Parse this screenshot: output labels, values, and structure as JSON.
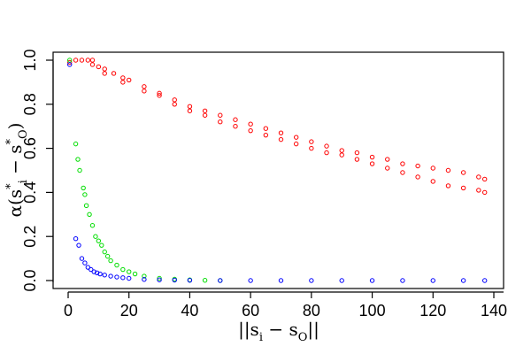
{
  "chart_data": {
    "type": "scatter",
    "xlabel": "||s_i - s_O||",
    "ylabel": "α(s*_i - s*_O)",
    "xlim": [
      0,
      138
    ],
    "ylim": [
      0,
      1.0
    ],
    "x_ticks": [
      "0",
      "20",
      "40",
      "60",
      "80",
      "100",
      "120",
      "140"
    ],
    "y_ticks": [
      "0.0",
      "0.2",
      "0.4",
      "0.6",
      "0.8",
      "1.0"
    ],
    "grid": false,
    "legend": "none",
    "series": [
      {
        "color": "#ff0000",
        "points": [
          [
            0.5,
            0.99
          ],
          [
            2.5,
            1.0
          ],
          [
            4.5,
            1.0
          ],
          [
            6.5,
            1.0
          ],
          [
            8.0,
            1.0
          ],
          [
            10,
            0.97
          ],
          [
            12,
            0.96
          ],
          [
            15,
            0.94
          ],
          [
            18,
            0.92
          ],
          [
            20,
            0.91
          ],
          [
            25,
            0.88
          ],
          [
            30,
            0.85
          ],
          [
            35,
            0.82
          ],
          [
            40,
            0.79
          ],
          [
            45,
            0.77
          ],
          [
            50,
            0.75
          ],
          [
            55,
            0.73
          ],
          [
            60,
            0.71
          ],
          [
            65,
            0.69
          ],
          [
            70,
            0.67
          ],
          [
            75,
            0.65
          ],
          [
            80,
            0.63
          ],
          [
            85,
            0.61
          ],
          [
            90,
            0.59
          ],
          [
            95,
            0.58
          ],
          [
            100,
            0.56
          ],
          [
            105,
            0.55
          ],
          [
            110,
            0.53
          ],
          [
            115,
            0.52
          ],
          [
            120,
            0.51
          ],
          [
            125,
            0.5
          ],
          [
            130,
            0.49
          ],
          [
            135,
            0.47
          ],
          [
            137,
            0.46
          ],
          [
            8,
            0.98
          ],
          [
            12,
            0.94
          ],
          [
            18,
            0.9
          ],
          [
            25,
            0.86
          ],
          [
            30,
            0.84
          ],
          [
            35,
            0.8
          ],
          [
            40,
            0.77
          ],
          [
            45,
            0.75
          ],
          [
            50,
            0.72
          ],
          [
            55,
            0.7
          ],
          [
            60,
            0.68
          ],
          [
            65,
            0.66
          ],
          [
            70,
            0.64
          ],
          [
            75,
            0.62
          ],
          [
            80,
            0.6
          ],
          [
            85,
            0.58
          ],
          [
            90,
            0.57
          ],
          [
            95,
            0.55
          ],
          [
            100,
            0.53
          ],
          [
            105,
            0.51
          ],
          [
            110,
            0.49
          ],
          [
            115,
            0.47
          ],
          [
            120,
            0.45
          ],
          [
            125,
            0.43
          ],
          [
            130,
            0.42
          ],
          [
            135,
            0.41
          ],
          [
            137,
            0.4
          ]
        ]
      },
      {
        "color": "#00dd00",
        "points": [
          [
            0.5,
            1.0
          ],
          [
            2.5,
            0.62
          ],
          [
            3.2,
            0.55
          ],
          [
            3.8,
            0.5
          ],
          [
            5.0,
            0.42
          ],
          [
            5.5,
            0.39
          ],
          [
            6.0,
            0.34
          ],
          [
            7.0,
            0.3
          ],
          [
            8.0,
            0.25
          ],
          [
            9.0,
            0.2
          ],
          [
            10,
            0.18
          ],
          [
            11,
            0.16
          ],
          [
            12,
            0.13
          ],
          [
            13,
            0.11
          ],
          [
            14,
            0.09
          ],
          [
            16,
            0.07
          ],
          [
            18,
            0.05
          ],
          [
            20,
            0.04
          ],
          [
            22,
            0.03
          ],
          [
            25,
            0.02
          ],
          [
            30,
            0.01
          ],
          [
            35,
            0.006
          ],
          [
            40,
            0.003
          ],
          [
            45,
            0.001
          ],
          [
            50,
            0.0
          ]
        ]
      },
      {
        "color": "#0000ff",
        "points": [
          [
            0.5,
            0.98
          ],
          [
            2.5,
            0.19
          ],
          [
            3.5,
            0.16
          ],
          [
            4.5,
            0.1
          ],
          [
            5.5,
            0.08
          ],
          [
            6.5,
            0.06
          ],
          [
            7.5,
            0.05
          ],
          [
            8.5,
            0.04
          ],
          [
            9.5,
            0.035
          ],
          [
            10.5,
            0.03
          ],
          [
            12,
            0.025
          ],
          [
            14,
            0.02
          ],
          [
            16,
            0.016
          ],
          [
            18,
            0.013
          ],
          [
            20,
            0.01
          ],
          [
            25,
            0.005
          ],
          [
            30,
            0.003
          ],
          [
            35,
            0.002
          ],
          [
            40,
            0.001
          ],
          [
            50,
            0.0
          ],
          [
            60,
            0.0
          ],
          [
            70,
            0.0
          ],
          [
            80,
            0.0
          ],
          [
            90,
            0.0
          ],
          [
            100,
            0.0
          ],
          [
            110,
            0.0
          ],
          [
            120,
            0.0
          ],
          [
            130,
            0.0
          ],
          [
            137,
            0.0
          ]
        ]
      }
    ]
  }
}
